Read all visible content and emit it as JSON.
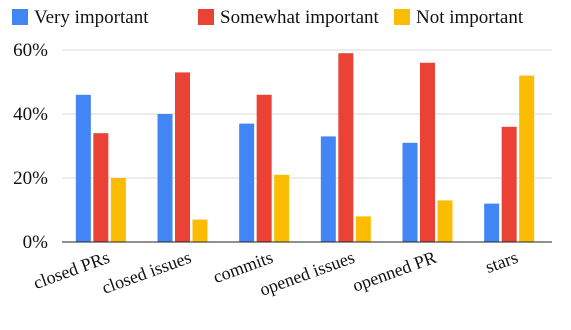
{
  "chart_data": {
    "type": "bar",
    "title": "",
    "xlabel": "",
    "ylabel": "",
    "categories": [
      "closed PRs",
      "closed issues",
      "commits",
      "opened issues",
      "openned PR",
      "stars"
    ],
    "series": [
      {
        "name": "Very important",
        "color": "#4285F4",
        "values": [
          46,
          40,
          37,
          33,
          31,
          12
        ]
      },
      {
        "name": "Somewhat important",
        "color": "#EA4335",
        "values": [
          34,
          53,
          46,
          59,
          56,
          36
        ]
      },
      {
        "name": "Not important",
        "color": "#FBBC04",
        "values": [
          20,
          7,
          21,
          8,
          13,
          52
        ]
      }
    ],
    "ylim": [
      0,
      60
    ],
    "y_ticks": [
      {
        "value": 0,
        "label": "0%"
      },
      {
        "value": 20,
        "label": "20%"
      },
      {
        "value": 40,
        "label": "40%"
      },
      {
        "value": 60,
        "label": "60%"
      }
    ],
    "grid": true,
    "legend_position": "top"
  }
}
